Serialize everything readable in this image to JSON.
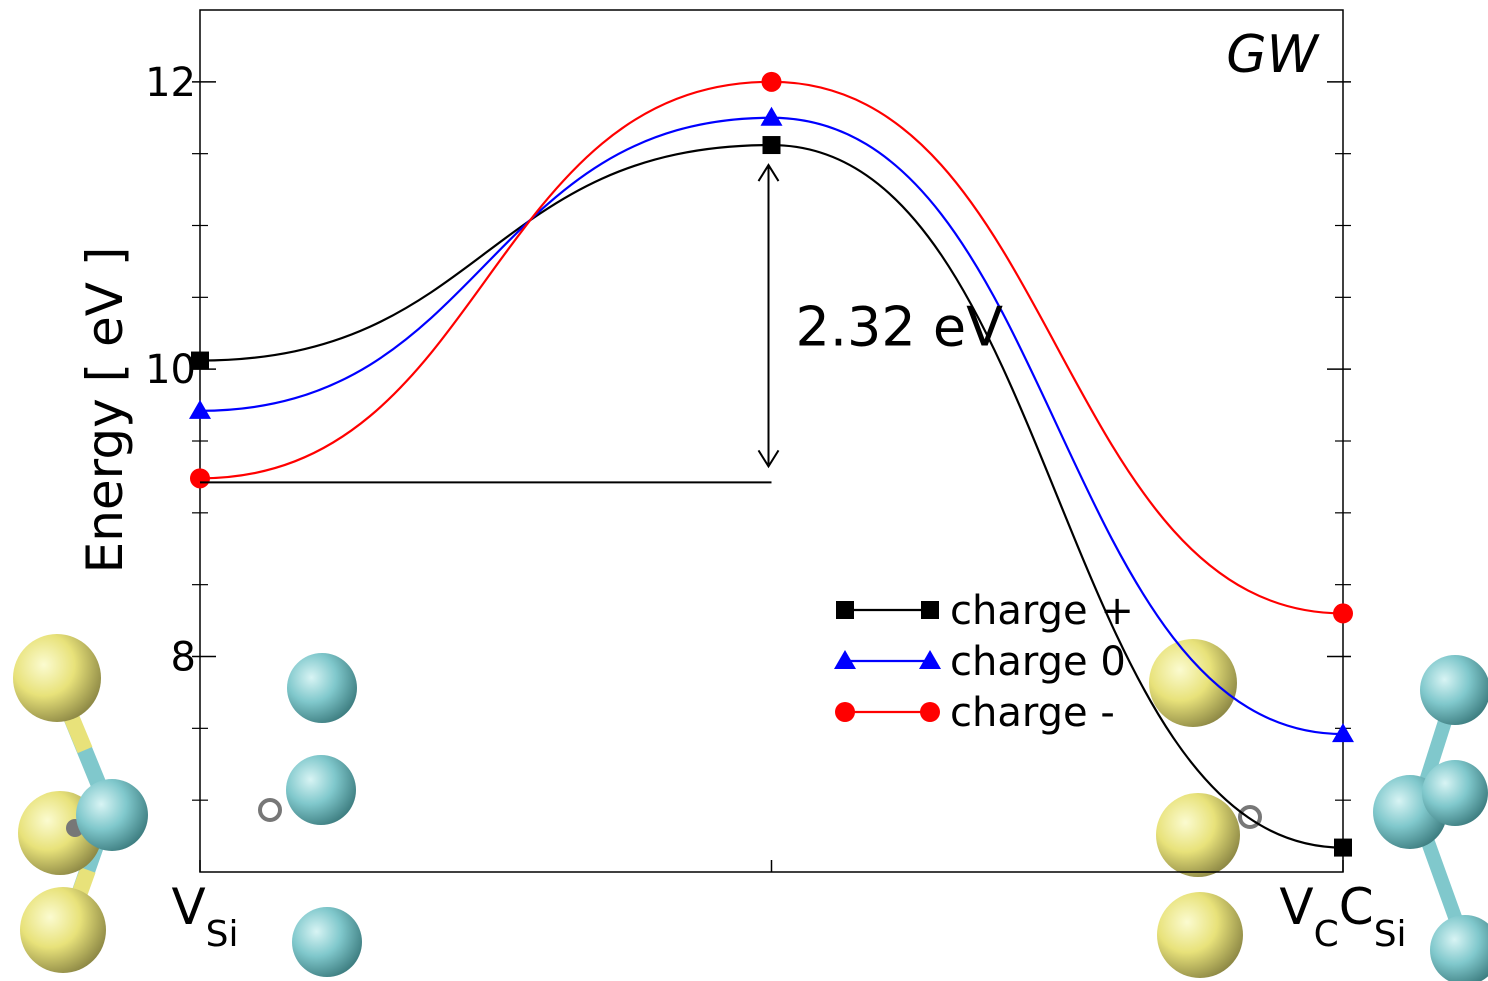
{
  "chart_data": {
    "type": "line",
    "ylabel": "Energy  [ eV ]",
    "annotation": "GW",
    "gap_label": "2.32 eV",
    "x": [
      0,
      0.5,
      1
    ],
    "xlim": [
      0,
      1
    ],
    "xticks": [
      {
        "value": 0,
        "label": [
          "V",
          "Si"
        ]
      },
      {
        "value": 0.5
      },
      {
        "value": 1,
        "label": [
          "V",
          "C",
          "C",
          "Si"
        ]
      }
    ],
    "ylim": [
      6.5,
      12.5
    ],
    "yticks": [
      8,
      10,
      12
    ],
    "yminorticks": [
      7,
      7.5,
      8.5,
      9,
      9.5,
      10.5,
      11,
      11.5
    ],
    "legend": "lower right",
    "series": [
      {
        "name": "charge +",
        "color": "#000000",
        "marker": "square",
        "values": [
          10.06,
          11.56,
          6.67
        ]
      },
      {
        "name": "charge 0",
        "color": "#0000ff",
        "marker": "triangle",
        "values": [
          9.71,
          11.75,
          7.46
        ]
      },
      {
        "name": "charge -",
        "color": "#ff0000",
        "marker": "circle",
        "values": [
          9.24,
          12.0,
          8.3
        ]
      }
    ]
  }
}
